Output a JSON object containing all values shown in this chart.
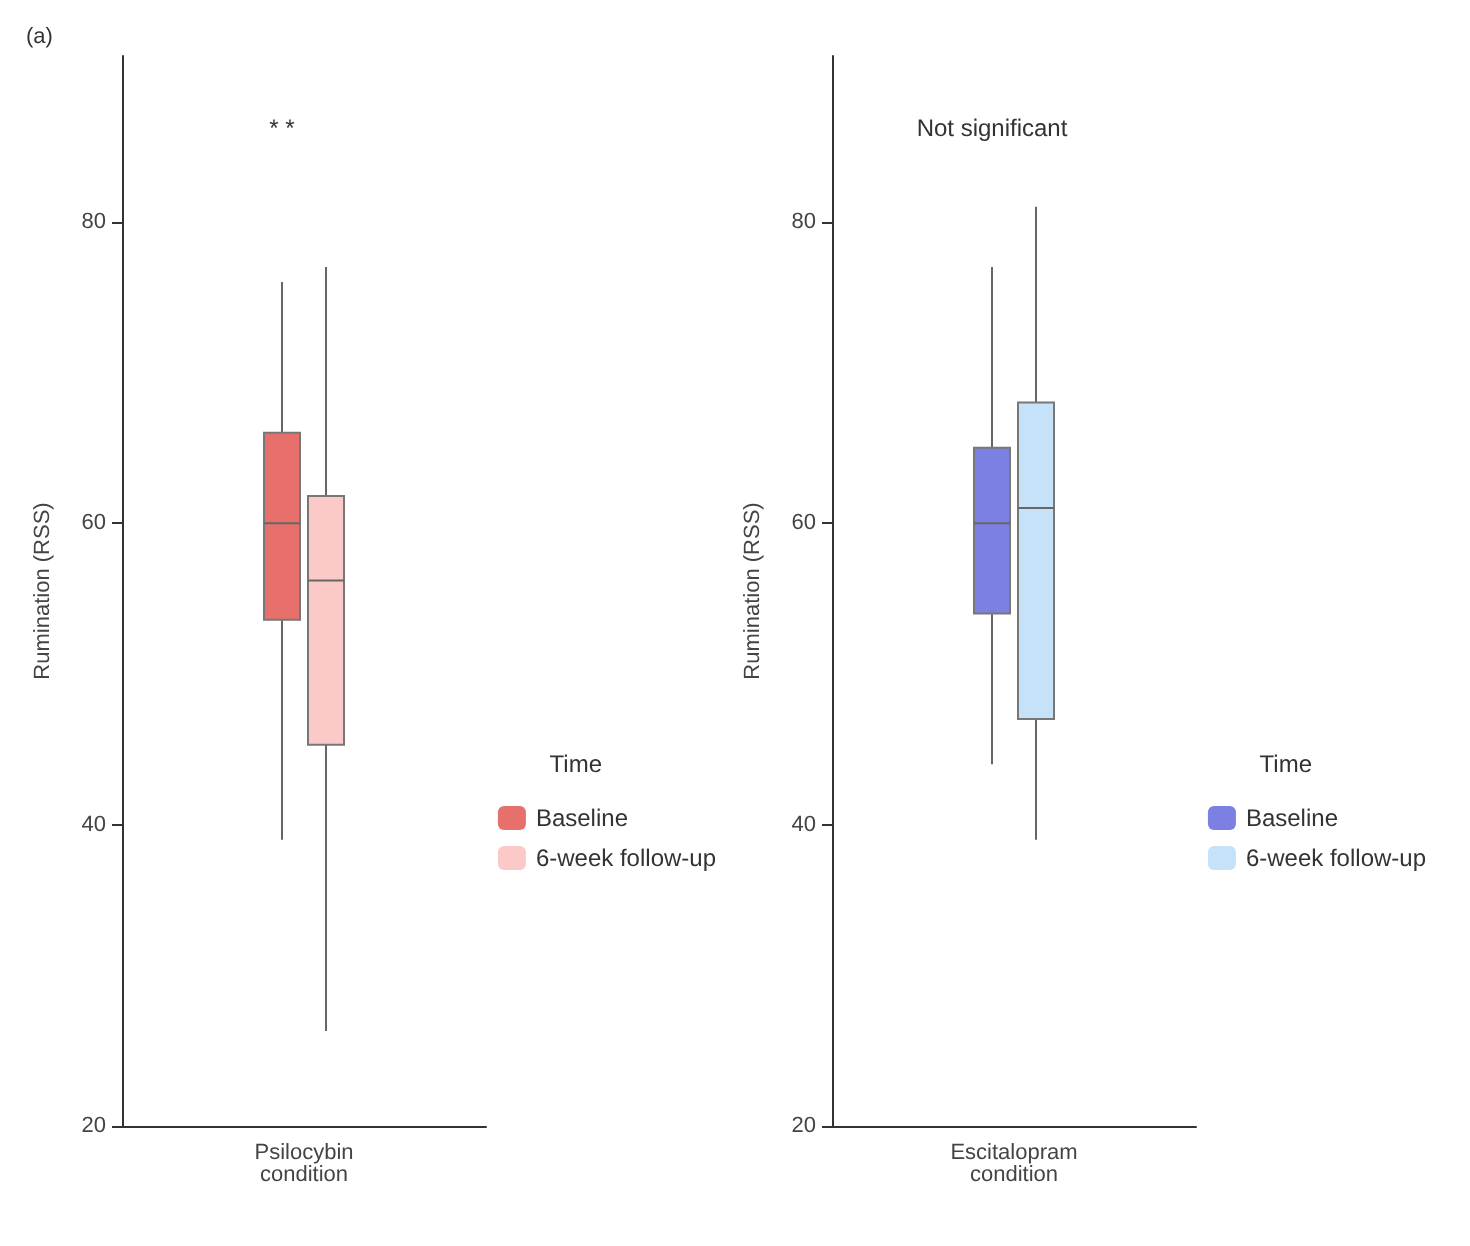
{
  "chart_data": [
    {
      "type": "box",
      "categories": [
        "Psilocybin\ncondition"
      ],
      "ylabel": "Rumination (RSS)",
      "ylim": [
        20,
        91
      ],
      "yticks": [
        20,
        40,
        60,
        80
      ],
      "grid": false,
      "legend": "right",
      "legend_title": "Time",
      "annotations": [
        "(a)",
        "* *"
      ],
      "series": [
        {
          "name": "Baseline",
          "color": "#e8706c",
          "boxes": [
            {
              "low": 39,
              "q1": 53.6,
              "median": 60,
              "q3": 66,
              "high": 76
            }
          ]
        },
        {
          "name": "6-week follow-up",
          "color": "#fcc9c9",
          "boxes": [
            {
              "low": 26.3,
              "q1": 45.3,
              "median": 56.2,
              "q3": 61.8,
              "high": 77
            }
          ]
        }
      ]
    },
    {
      "type": "box",
      "categories": [
        "Escitalopram\ncondition"
      ],
      "ylabel": "Rumination (RSS)",
      "ylim": [
        20,
        91
      ],
      "yticks": [
        20,
        40,
        60,
        80
      ],
      "grid": false,
      "legend": "right",
      "legend_title": "Time",
      "annotations": [
        "Not significant"
      ],
      "series": [
        {
          "name": "Baseline",
          "color": "#7b80e2",
          "boxes": [
            {
              "low": 44,
              "q1": 54,
              "median": 60,
              "q3": 65,
              "high": 77
            }
          ]
        },
        {
          "name": "6-week follow-up",
          "color": "#c6e2f9",
          "boxes": [
            {
              "low": 39,
              "q1": 47,
              "median": 61,
              "q3": 68,
              "high": 81
            }
          ]
        }
      ]
    }
  ]
}
